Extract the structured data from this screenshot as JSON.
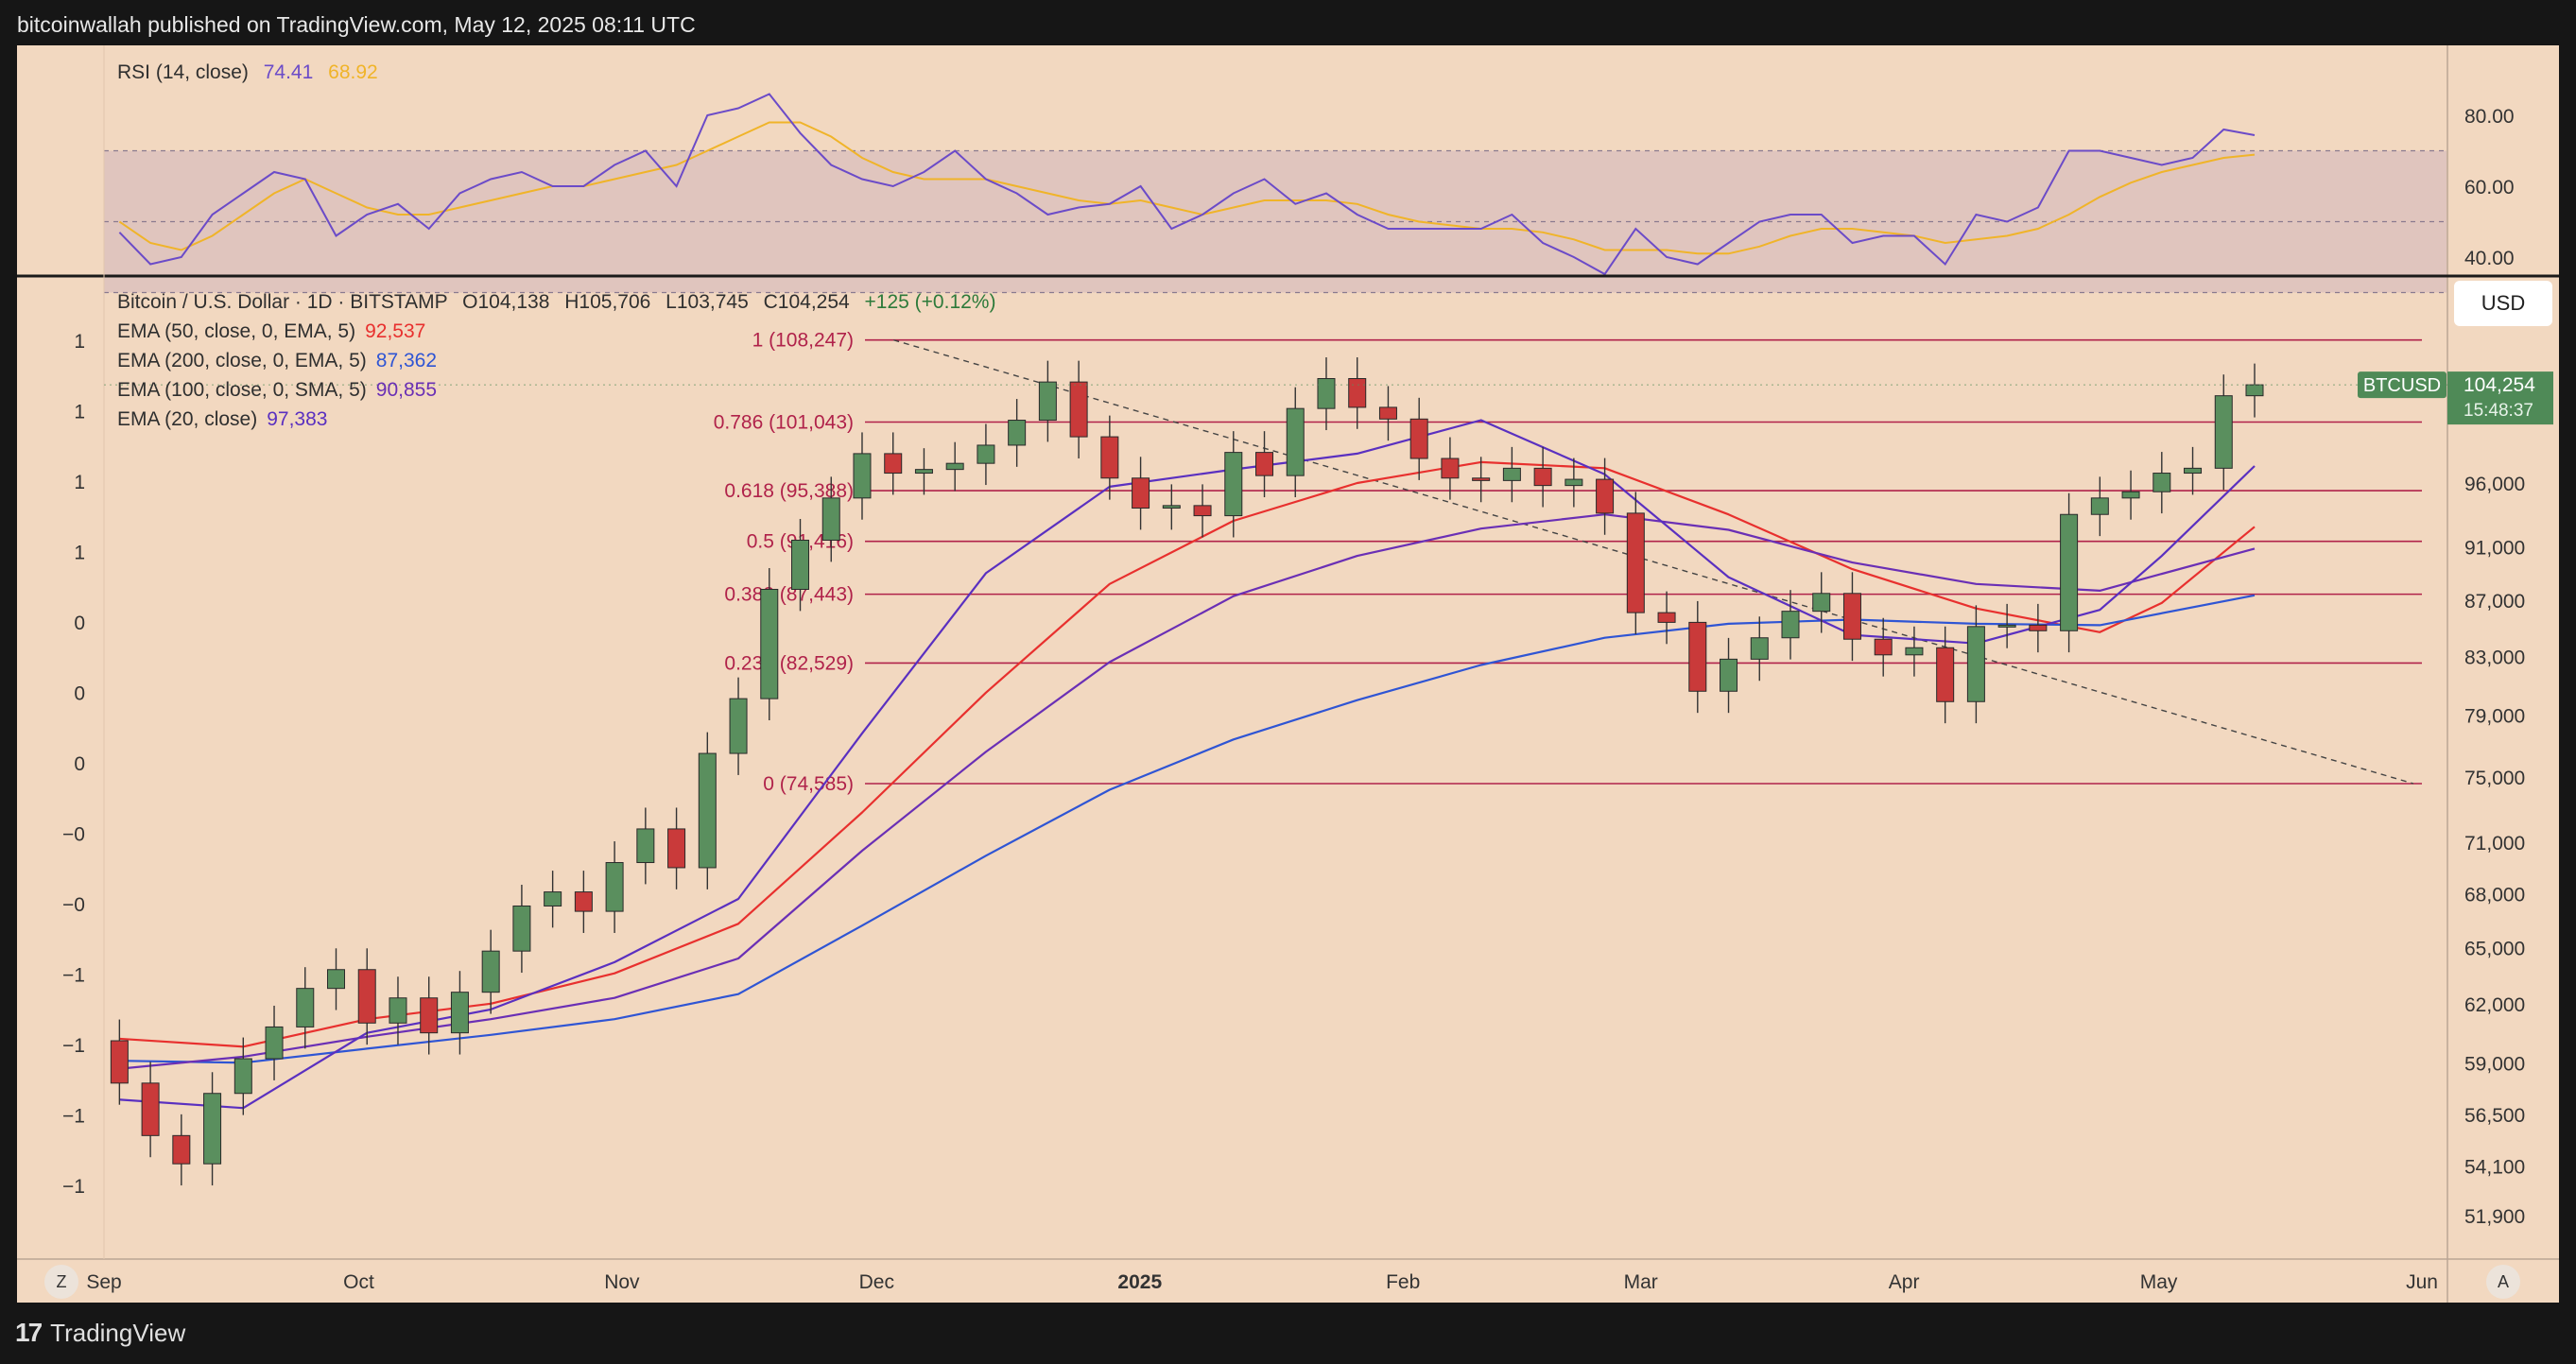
{
  "header": {
    "publisher_text": "bitcoinwallah published on TradingView.com, May 12, 2025 08:11 UTC"
  },
  "footer": {
    "brand": "TradingView",
    "brand_mark": "17"
  },
  "controls": {
    "currency": "USD",
    "left_corner": "Z",
    "right_corner": "A"
  },
  "colors": {
    "panel_bg": "#f2d8c0",
    "up": "#5a8f5e",
    "down": "#c93a3a",
    "ema50": "#e8302e",
    "ema200": "#2f55d4",
    "sma100": "#6a2fb5",
    "ema20": "#5a30c0",
    "rsi": "#6b4bc8",
    "rsi_ma": "#f0b429",
    "fib": "#b0224a"
  },
  "legend": {
    "title": "Bitcoin / U.S. Dollar · 1D · BITSTAMP",
    "open": "O104,138",
    "high": "H105,706",
    "low": "L103,745",
    "close": "C104,254",
    "change": "+125 (+0.12%)",
    "indicators": [
      {
        "label": "EMA (50, close, 0, EMA, 5)",
        "value": "92,537",
        "color": "#e8302e"
      },
      {
        "label": "EMA (200, close, 0, EMA, 5)",
        "value": "87,362",
        "color": "#2f55d4"
      },
      {
        "label": "EMA (100, close, 0, SMA, 5)",
        "value": "90,855",
        "color": "#6a2fb5"
      },
      {
        "label": "EMA (20, close)",
        "value": "97,383",
        "color": "#5a30c0"
      }
    ]
  },
  "rsi_legend": {
    "label": "RSI (14, close)",
    "value": "74.41",
    "ma_value": "68.92"
  },
  "price_tag": {
    "symbol": "BTCUSD",
    "price": "104,254",
    "countdown": "15:48:37"
  },
  "chart_data": {
    "type": "candlestick",
    "symbol": "BTCUSD",
    "scale": "log",
    "x_range": [
      "2024-09-01",
      "2025-06-01"
    ],
    "x_ticks": [
      "Sep",
      "Oct",
      "Nov",
      "Dec",
      "2025",
      "Feb",
      "Mar",
      "Apr",
      "May",
      "Jun"
    ],
    "y_ticks": [
      "96,000",
      "91,000",
      "87,000",
      "83,000",
      "79,000",
      "75,000",
      "71,000",
      "68,000",
      "65,000",
      "62,000",
      "59,000",
      "56,500",
      "54,100",
      "51,900"
    ],
    "left_axis_labels": [
      "1",
      "1",
      "1",
      "1",
      "0",
      "0",
      "0",
      "−0",
      "−0",
      "−1",
      "−1",
      "−1",
      "−1"
    ],
    "weekly_closes": [
      58000,
      55500,
      54200,
      57500,
      59200,
      60800,
      62800,
      63800,
      61000,
      62300,
      60500,
      62600,
      64800,
      67300,
      68100,
      67000,
      69800,
      71800,
      69500,
      76500,
      80100,
      87800,
      91500,
      94800,
      98400,
      96800,
      97100,
      97600,
      99100,
      101200,
      104500,
      99800,
      96400,
      94000,
      94200,
      93400,
      98500,
      96600,
      102200,
      104800,
      102300,
      101300,
      98000,
      96400,
      96200,
      97200,
      95800,
      96300,
      93600,
      86100,
      85400,
      80600,
      82800,
      84300,
      86200,
      87500,
      84200,
      83100,
      83600,
      79900,
      85100,
      85200,
      84800,
      93500,
      94800,
      95300,
      96800,
      97200,
      103300,
      104254
    ],
    "fib_levels": [
      {
        "label": "1 (108,247)",
        "price": 108247
      },
      {
        "label": "0.786 (101,043)",
        "price": 101043
      },
      {
        "label": "0.618 (95,388)",
        "price": 95388
      },
      {
        "label": "0.5 (91,416)",
        "price": 91416
      },
      {
        "label": "0.382 (87,443)",
        "price": 87443
      },
      {
        "label": "0.236 (82,529)",
        "price": 82529
      },
      {
        "label": "0 (74,585)",
        "price": 74585
      }
    ],
    "trendline": {
      "from": {
        "date": "2024-12-03",
        "price": 108247
      },
      "to": {
        "date": "2025-05-31",
        "price": 74585
      }
    },
    "ema_series": [
      {
        "name": "EMA (50, close, 0, EMA, 5)",
        "points": [
          [
            0,
            60200
          ],
          [
            4,
            59800
          ],
          [
            8,
            61200
          ],
          [
            12,
            62000
          ],
          [
            16,
            63600
          ],
          [
            20,
            66300
          ],
          [
            24,
            72800
          ],
          [
            28,
            80500
          ],
          [
            32,
            88200
          ],
          [
            36,
            93000
          ],
          [
            40,
            96000
          ],
          [
            44,
            97700
          ],
          [
            48,
            97200
          ],
          [
            52,
            93500
          ],
          [
            56,
            89300
          ],
          [
            60,
            86400
          ],
          [
            64,
            84700
          ],
          [
            66,
            86800
          ],
          [
            69,
            92537
          ]
        ]
      },
      {
        "name": "EMA (200, close, 0, EMA, 5)",
        "points": [
          [
            0,
            59100
          ],
          [
            4,
            59000
          ],
          [
            8,
            59700
          ],
          [
            12,
            60400
          ],
          [
            16,
            61200
          ],
          [
            20,
            62500
          ],
          [
            24,
            66200
          ],
          [
            28,
            70200
          ],
          [
            32,
            74200
          ],
          [
            36,
            77400
          ],
          [
            40,
            80000
          ],
          [
            44,
            82400
          ],
          [
            48,
            84300
          ],
          [
            52,
            85300
          ],
          [
            56,
            85600
          ],
          [
            60,
            85300
          ],
          [
            64,
            85200
          ],
          [
            69,
            87362
          ]
        ]
      },
      {
        "name": "EMA (100, close, 0, SMA, 5)",
        "points": [
          [
            0,
            58700
          ],
          [
            4,
            59300
          ],
          [
            8,
            60300
          ],
          [
            12,
            61200
          ],
          [
            16,
            62300
          ],
          [
            20,
            64400
          ],
          [
            24,
            70500
          ],
          [
            28,
            76600
          ],
          [
            32,
            82600
          ],
          [
            36,
            87300
          ],
          [
            40,
            90300
          ],
          [
            44,
            92400
          ],
          [
            48,
            93500
          ],
          [
            52,
            92300
          ],
          [
            56,
            89800
          ],
          [
            60,
            88200
          ],
          [
            64,
            87700
          ],
          [
            69,
            90855
          ]
        ]
      },
      {
        "name": "EMA (20, close)",
        "points": [
          [
            0,
            57200
          ],
          [
            4,
            56800
          ],
          [
            8,
            60500
          ],
          [
            12,
            61700
          ],
          [
            16,
            64200
          ],
          [
            20,
            67700
          ],
          [
            24,
            77800
          ],
          [
            28,
            89000
          ],
          [
            32,
            95700
          ],
          [
            36,
            97100
          ],
          [
            40,
            98400
          ],
          [
            44,
            101200
          ],
          [
            48,
            96700
          ],
          [
            52,
            88700
          ],
          [
            56,
            84500
          ],
          [
            60,
            83900
          ],
          [
            64,
            86300
          ],
          [
            66,
            90300
          ],
          [
            69,
            97383
          ]
        ]
      }
    ],
    "rsi": {
      "ylim": [
        20,
        90
      ],
      "y_ticks": [
        "80.00",
        "60.00",
        "40.00"
      ],
      "bands": {
        "upper": 70,
        "middle": 50,
        "lower": 30
      },
      "values": [
        47,
        38,
        40,
        52,
        58,
        64,
        62,
        46,
        52,
        55,
        48,
        58,
        62,
        64,
        60,
        60,
        66,
        70,
        60,
        80,
        82,
        86,
        75,
        66,
        62,
        60,
        64,
        70,
        62,
        58,
        52,
        54,
        55,
        60,
        48,
        52,
        58,
        62,
        55,
        58,
        52,
        48,
        48,
        48,
        48,
        52,
        44,
        40,
        30,
        48,
        40,
        38,
        44,
        50,
        52,
        52,
        44,
        46,
        46,
        38,
        52,
        50,
        54,
        70,
        70,
        68,
        66,
        68,
        76,
        74.41
      ],
      "ma_values": [
        50,
        44,
        42,
        46,
        52,
        58,
        62,
        58,
        54,
        52,
        52,
        54,
        56,
        58,
        60,
        60,
        62,
        64,
        66,
        70,
        74,
        78,
        78,
        74,
        68,
        64,
        62,
        62,
        62,
        60,
        58,
        56,
        55,
        56,
        54,
        52,
        54,
        56,
        56,
        56,
        55,
        52,
        50,
        49,
        48,
        48,
        47,
        45,
        42,
        42,
        42,
        41,
        41,
        43,
        46,
        48,
        48,
        47,
        46,
        44,
        45,
        46,
        48,
        52,
        57,
        61,
        64,
        66,
        68,
        68.92
      ]
    }
  }
}
